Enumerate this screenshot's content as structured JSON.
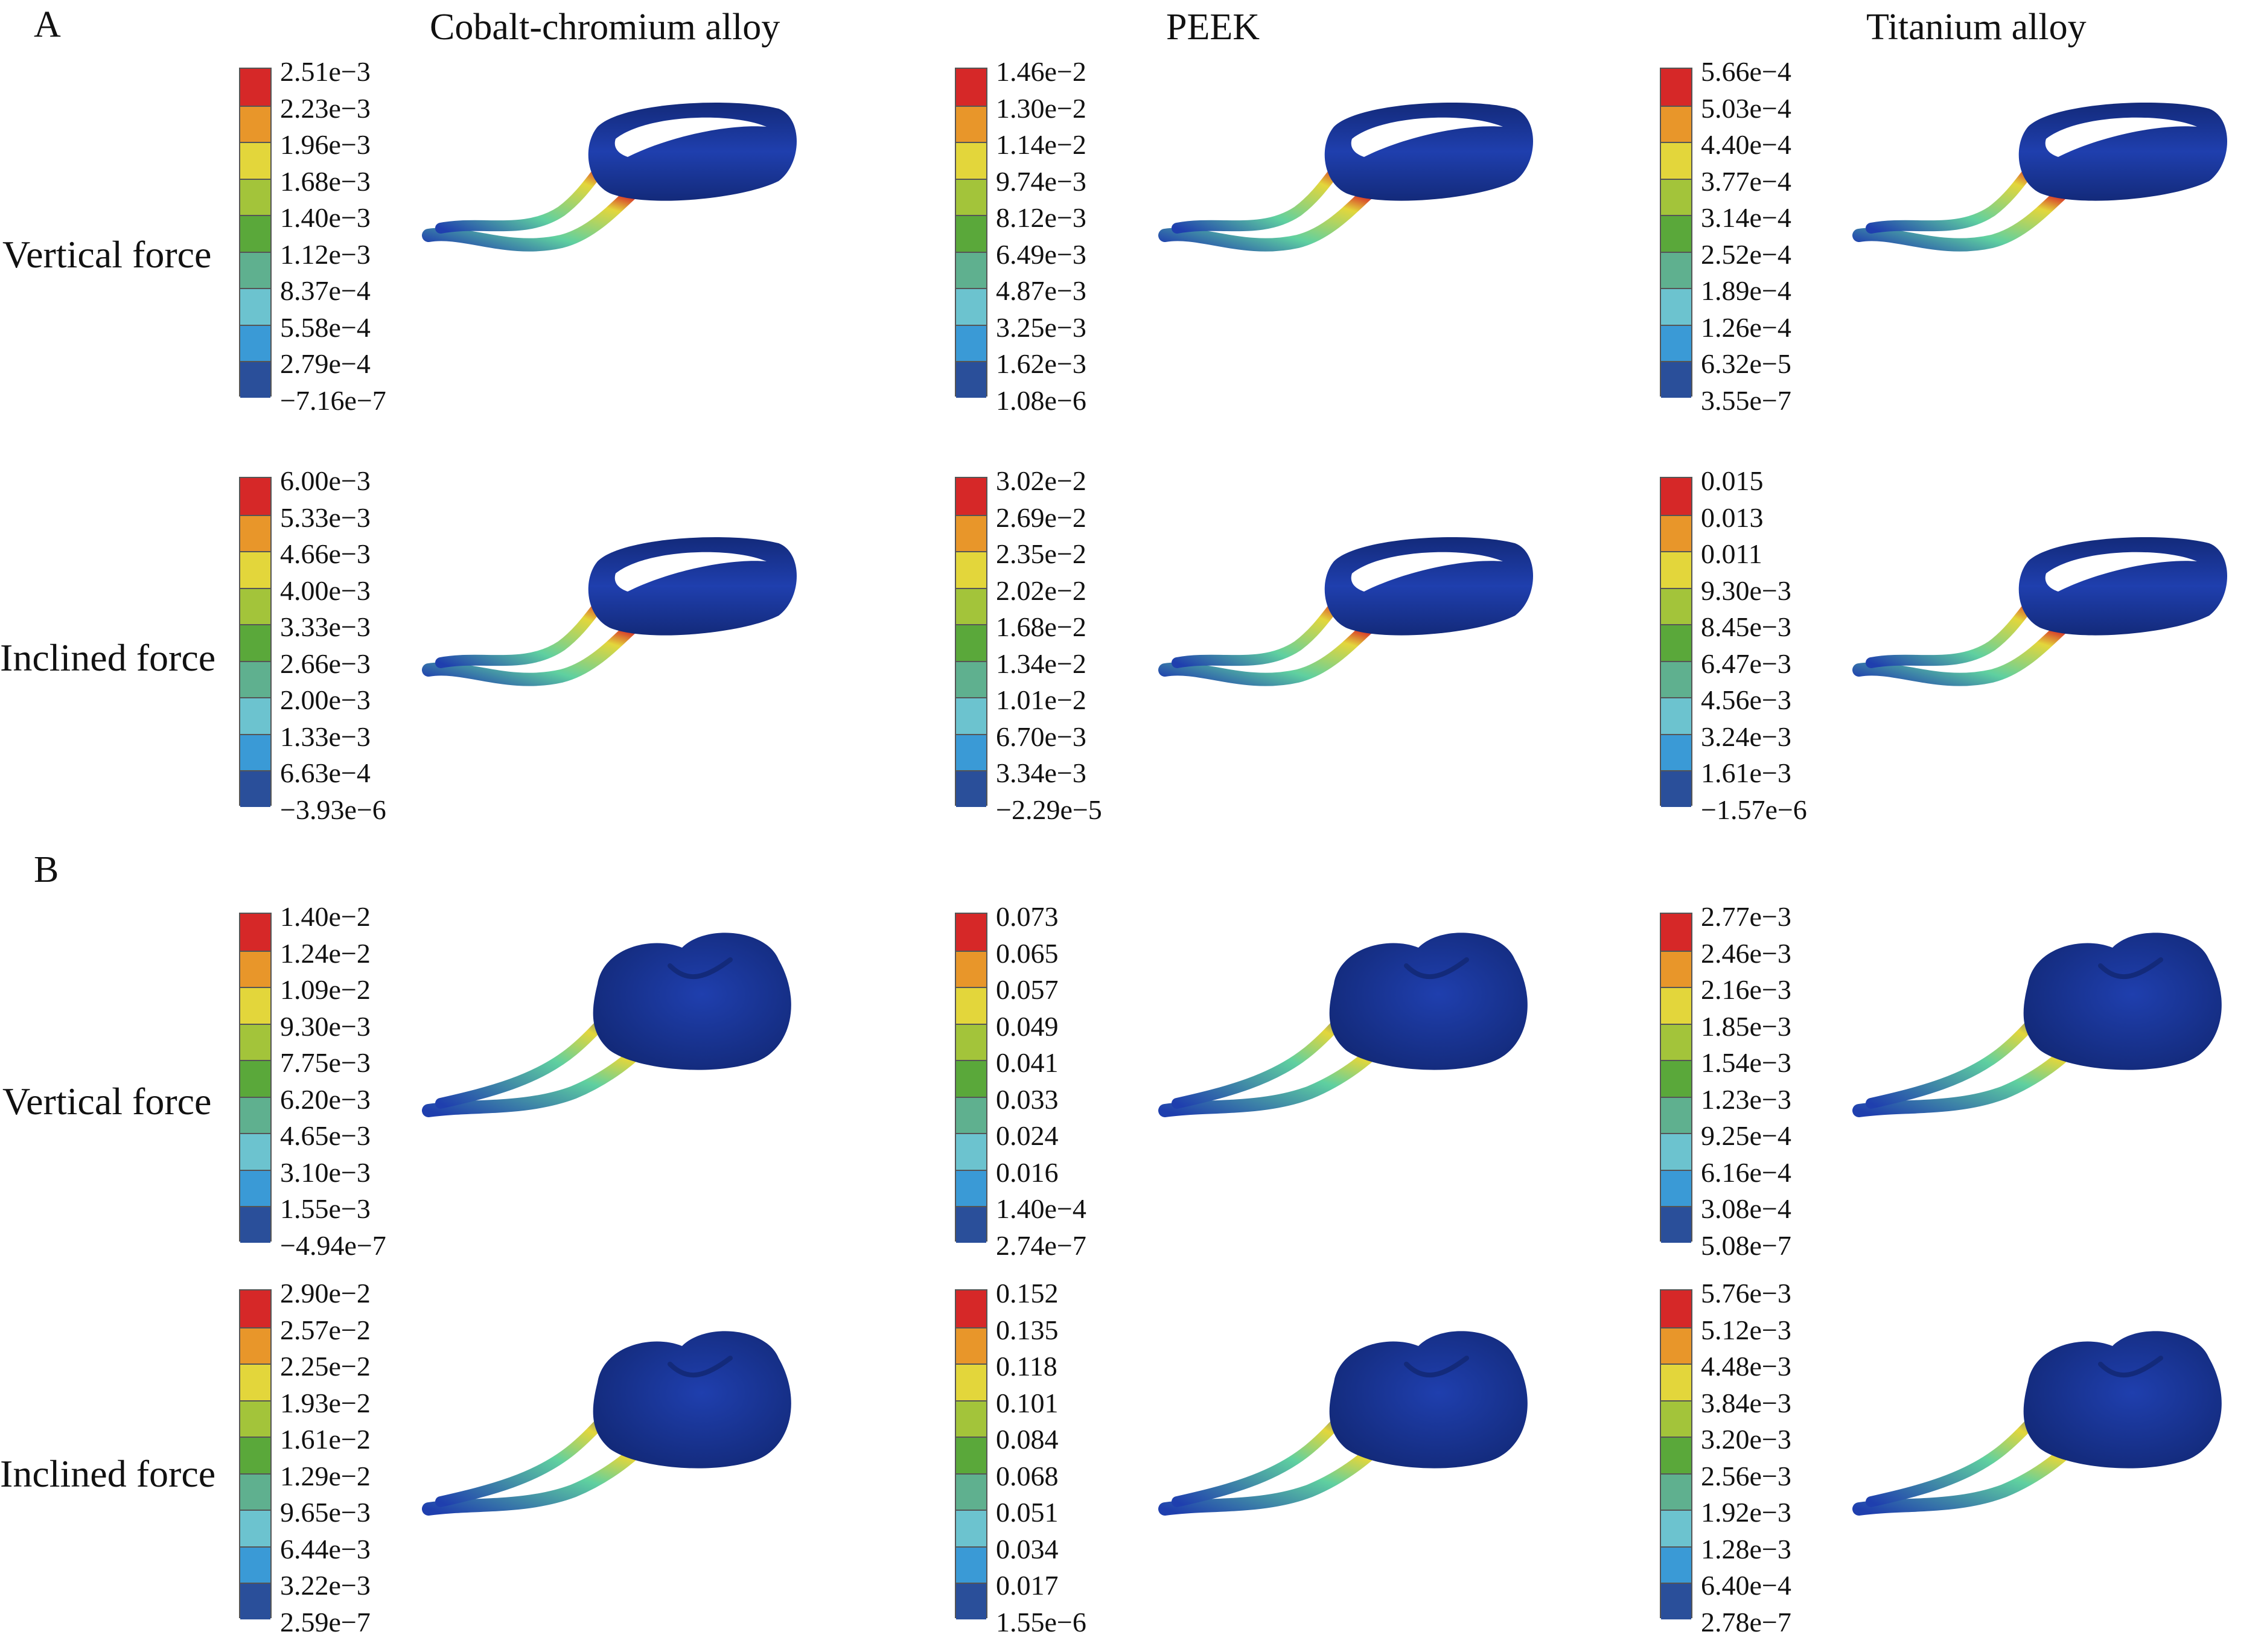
{
  "panels": [
    {
      "letter": "A",
      "columns": [
        "Cobalt-chromium alloy",
        "PEEK",
        "Titanium alloy"
      ],
      "rows": [
        {
          "label": "Vertical force",
          "scales": [
            [
              "2.51e−3",
              "2.23e−3",
              "1.96e−3",
              "1.68e−3",
              "1.40e−3",
              "1.12e−3",
              "8.37e−4",
              "5.58e−4",
              "2.79e−4",
              "−7.16e−7"
            ],
            [
              "1.46e−2",
              "1.30e−2",
              "1.14e−2",
              "9.74e−3",
              "8.12e−3",
              "6.49e−3",
              "4.87e−3",
              "3.25e−3",
              "1.62e−3",
              "1.08e−6"
            ],
            [
              "5.66e−4",
              "5.03e−4",
              "4.40e−4",
              "3.77e−4",
              "3.14e−4",
              "2.52e−4",
              "1.89e−4",
              "1.26e−4",
              "6.32e−5",
              "3.55e−7"
            ]
          ]
        },
        {
          "label": "Inclined force",
          "scales": [
            [
              "6.00e−3",
              "5.33e−3",
              "4.66e−3",
              "4.00e−3",
              "3.33e−3",
              "2.66e−3",
              "2.00e−3",
              "1.33e−3",
              "6.63e−4",
              "−3.93e−6"
            ],
            [
              "3.02e−2",
              "2.69e−2",
              "2.35e−2",
              "2.02e−2",
              "1.68e−2",
              "1.34e−2",
              "1.01e−2",
              "6.70e−3",
              "3.34e−3",
              "−2.29e−5"
            ],
            [
              "0.015",
              "0.013",
              "0.011",
              "9.30e−3",
              "8.45e−3",
              "6.47e−3",
              "4.56e−3",
              "3.24e−3",
              "1.61e−3",
              "−1.57e−6"
            ]
          ]
        }
      ]
    },
    {
      "letter": "B",
      "rows": [
        {
          "label": "Vertical force",
          "scales": [
            [
              "1.40e−2",
              "1.24e−2",
              "1.09e−2",
              "9.30e−3",
              "7.75e−3",
              "6.20e−3",
              "4.65e−3",
              "3.10e−3",
              "1.55e−3",
              "−4.94e−7"
            ],
            [
              "0.073",
              "0.065",
              "0.057",
              "0.049",
              "0.041",
              "0.033",
              "0.024",
              "0.016",
              "1.40e−4",
              "2.74e−7"
            ],
            [
              "2.77e−3",
              "2.46e−3",
              "2.16e−3",
              "1.85e−3",
              "1.54e−3",
              "1.23e−3",
              "9.25e−4",
              "6.16e−4",
              "3.08e−4",
              "5.08e−7"
            ]
          ]
        },
        {
          "label": "Inclined force",
          "scales": [
            [
              "2.90e−2",
              "2.57e−2",
              "2.25e−2",
              "1.93e−2",
              "1.61e−2",
              "1.29e−2",
              "9.65e−3",
              "6.44e−3",
              "3.22e−3",
              "2.59e−7"
            ],
            [
              "0.152",
              "0.135",
              "0.118",
              "0.101",
              "0.084",
              "0.068",
              "0.051",
              "0.034",
              "0.017",
              "1.55e−6"
            ],
            [
              "5.76e−3",
              "5.12e−3",
              "4.48e−3",
              "3.84e−3",
              "3.20e−3",
              "2.56e−3",
              "1.92e−3",
              "1.28e−3",
              "6.40e−4",
              "2.78e−7"
            ]
          ]
        }
      ]
    }
  ],
  "colormap": [
    "#d62828",
    "#e8962a",
    "#e3d63b",
    "#a3c43a",
    "#5aa83a",
    "#5fb08f",
    "#6cc3cf",
    "#3a9ad6",
    "#2a4f9a"
  ],
  "model_colors": {
    "body": "#1f3fae",
    "body_dark": "#132a7a",
    "hot": "#d62828",
    "warm": "#e3d63b",
    "mid": "#5fd0a0"
  }
}
